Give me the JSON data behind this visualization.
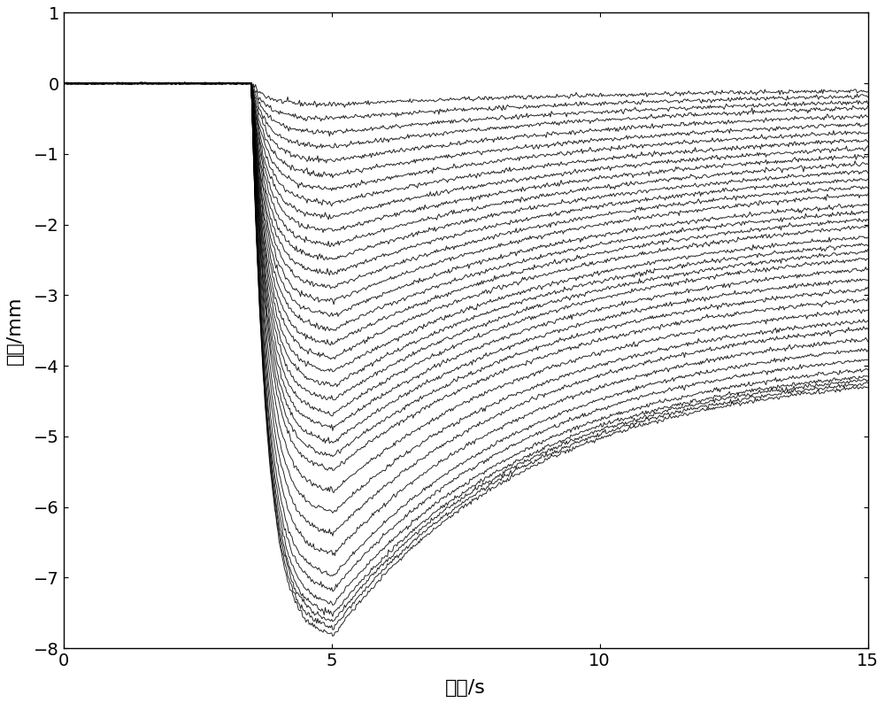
{
  "xlim": [
    0,
    15
  ],
  "ylim": [
    -8,
    1
  ],
  "xlabel": "时间/s",
  "ylabel": "位移/mm",
  "xticks": [
    0,
    5,
    10,
    15
  ],
  "yticks": [
    1,
    0,
    -1,
    -2,
    -3,
    -4,
    -5,
    -6,
    -7,
    -8
  ],
  "num_curves": 38,
  "flat_end": 3.5,
  "drop_end": 5.0,
  "t_total": 15.0,
  "background_color": "#ffffff",
  "line_color": "#000000",
  "linewidth": 0.7,
  "figsize": [
    10.0,
    7.94
  ],
  "dpi": 100,
  "min_depths": [
    -0.3,
    -0.5,
    -0.7,
    -0.9,
    -1.1,
    -1.3,
    -1.5,
    -1.7,
    -1.9,
    -2.1,
    -2.3,
    -2.5,
    -2.7,
    -2.9,
    -3.1,
    -3.3,
    -3.5,
    -3.7,
    -3.9,
    -4.1,
    -4.3,
    -4.5,
    -4.7,
    -4.9,
    -5.1,
    -5.3,
    -5.5,
    -5.8,
    -6.1,
    -6.4,
    -6.7,
    -7.0,
    -7.2,
    -7.4,
    -7.55,
    -7.65,
    -7.75,
    -7.85
  ],
  "recover_vals": [
    -0.05,
    -0.1,
    -0.15,
    -0.2,
    -0.3,
    -0.4,
    -0.5,
    -0.6,
    -0.7,
    -0.8,
    -0.9,
    -1.0,
    -1.1,
    -1.2,
    -1.3,
    -1.45,
    -1.55,
    -1.65,
    -1.75,
    -1.9,
    -2.0,
    -2.1,
    -2.2,
    -2.35,
    -2.5,
    -2.65,
    -2.8,
    -2.95,
    -3.1,
    -3.2,
    -3.35,
    -3.5,
    -3.65,
    -3.8,
    -3.9,
    -3.95,
    -4.0,
    -4.05
  ]
}
